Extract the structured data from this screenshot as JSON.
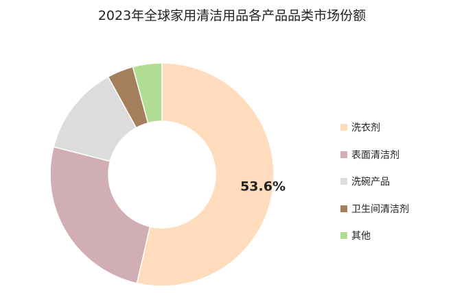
{
  "chart_data": {
    "type": "pie",
    "title": "2023年全球家用清洁用品各产品品类市场份额",
    "donut": true,
    "categories": [
      "洗衣剂",
      "表面清洁剂",
      "洗碗产品",
      "卫生间清洁剂",
      "其他"
    ],
    "values": [
      53.6,
      25.4,
      13.0,
      3.8,
      4.2
    ],
    "unit": "%",
    "colors": [
      "#FFDCBC",
      "#D1AEB3",
      "#DCDCDC",
      "#A37F5C",
      "#B0DC94"
    ],
    "data_labels": [
      {
        "category": "洗衣剂",
        "text": "53.6%"
      }
    ],
    "legend_position": "right"
  }
}
